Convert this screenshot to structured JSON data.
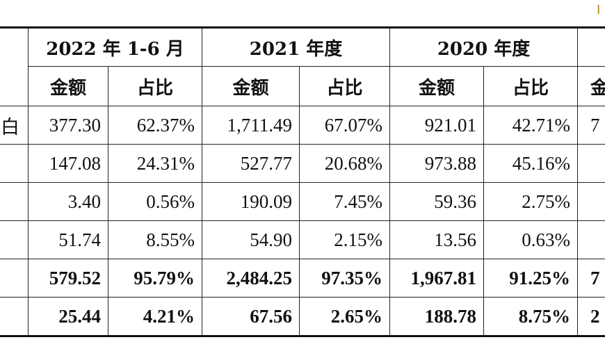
{
  "corner_mark": "I",
  "table": {
    "periods": [
      "2022 年 1-6 月",
      "2021 年度",
      "2020 年度"
    ],
    "sub_headers": [
      "金额",
      "占比",
      "金额",
      "占比",
      "金额",
      "占比"
    ],
    "cut_sub_header": "金",
    "rows": [
      {
        "label": "白",
        "values": [
          "377.30",
          "62.37%",
          "1,711.49",
          "67.07%",
          "921.01",
          "42.71%"
        ],
        "cut": "7"
      },
      {
        "label": "",
        "values": [
          "147.08",
          "24.31%",
          "527.77",
          "20.68%",
          "973.88",
          "45.16%"
        ],
        "cut": ""
      },
      {
        "label": "",
        "values": [
          "3.40",
          "0.56%",
          "190.09",
          "7.45%",
          "59.36",
          "2.75%"
        ],
        "cut": ""
      },
      {
        "label": "",
        "values": [
          "51.74",
          "8.55%",
          "54.90",
          "2.15%",
          "13.56",
          "0.63%"
        ],
        "cut": ""
      },
      {
        "label": "",
        "values": [
          "579.52",
          "95.79%",
          "2,484.25",
          "97.35%",
          "1,967.81",
          "91.25%"
        ],
        "cut": "7",
        "bold": true
      },
      {
        "label": "",
        "values": [
          "25.44",
          "4.21%",
          "67.56",
          "2.65%",
          "188.78",
          "8.75%"
        ],
        "cut": "2",
        "bold": true
      }
    ]
  }
}
